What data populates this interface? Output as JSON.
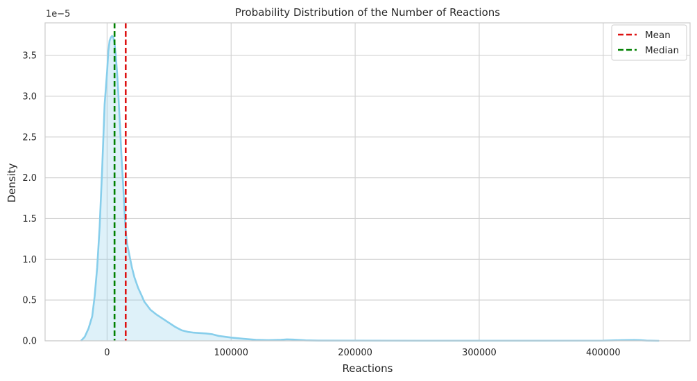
{
  "chart_data": {
    "type": "area",
    "title": "Probability Distribution of the Number of Reactions",
    "xlabel": "Reactions",
    "ylabel": "Density",
    "y_offset_label": "1e−5",
    "xlim": [
      -50000,
      470000
    ],
    "ylim": [
      0,
      3.9
    ],
    "x_ticks": [
      0,
      100000,
      200000,
      300000,
      400000
    ],
    "x_tick_labels": [
      "0",
      "100000",
      "200000",
      "300000",
      "400000"
    ],
    "y_ticks": [
      0,
      0.5,
      1.0,
      1.5,
      2.0,
      2.5,
      3.0,
      3.5
    ],
    "y_tick_labels": [
      "0.0",
      "0.5",
      "1.0",
      "1.5",
      "2.0",
      "2.5",
      "3.0",
      "3.5"
    ],
    "grid": true,
    "legend_position": "top-right",
    "density_curve": {
      "color": "#87ceeb",
      "fill_color": "#87ceeb",
      "x": [
        -21000,
        -18000,
        -15000,
        -12000,
        -10000,
        -8000,
        -6000,
        -4000,
        -2000,
        0,
        1000,
        2000,
        3000,
        4000,
        5000,
        6000,
        7000,
        8000,
        9000,
        10000,
        11000,
        12000,
        13000,
        14000,
        15000,
        16000,
        18000,
        20000,
        22000,
        25000,
        28000,
        30000,
        35000,
        40000,
        45000,
        50000,
        55000,
        60000,
        65000,
        70000,
        75000,
        80000,
        85000,
        90000,
        100000,
        110000,
        120000,
        130000,
        140000,
        145000,
        150000,
        160000,
        170000,
        200000,
        250000,
        300000,
        350000,
        400000,
        415000,
        425000,
        430000,
        435000,
        445000
      ],
      "y": [
        0.0,
        0.05,
        0.15,
        0.3,
        0.55,
        0.9,
        1.4,
        2.1,
        2.9,
        3.3,
        3.55,
        3.68,
        3.72,
        3.74,
        3.72,
        3.65,
        3.5,
        3.3,
        3.05,
        2.75,
        2.45,
        2.15,
        1.9,
        1.6,
        1.35,
        1.2,
        1.05,
        0.9,
        0.78,
        0.65,
        0.55,
        0.48,
        0.38,
        0.32,
        0.27,
        0.22,
        0.17,
        0.13,
        0.11,
        0.1,
        0.095,
        0.09,
        0.08,
        0.06,
        0.04,
        0.025,
        0.012,
        0.008,
        0.012,
        0.018,
        0.015,
        0.006,
        0.003,
        0.002,
        0.001,
        0.001,
        0.001,
        0.002,
        0.008,
        0.01,
        0.008,
        0.003,
        0.0
      ]
    },
    "reference_lines": [
      {
        "name": "Mean",
        "x": 15000,
        "color": "#dd1111",
        "style": "dashed"
      },
      {
        "name": "Median",
        "x": 6000,
        "color": "#008000",
        "style": "dashed"
      }
    ],
    "legend": [
      {
        "label": "Mean",
        "color": "#dd1111"
      },
      {
        "label": "Median",
        "color": "#008000"
      }
    ]
  }
}
